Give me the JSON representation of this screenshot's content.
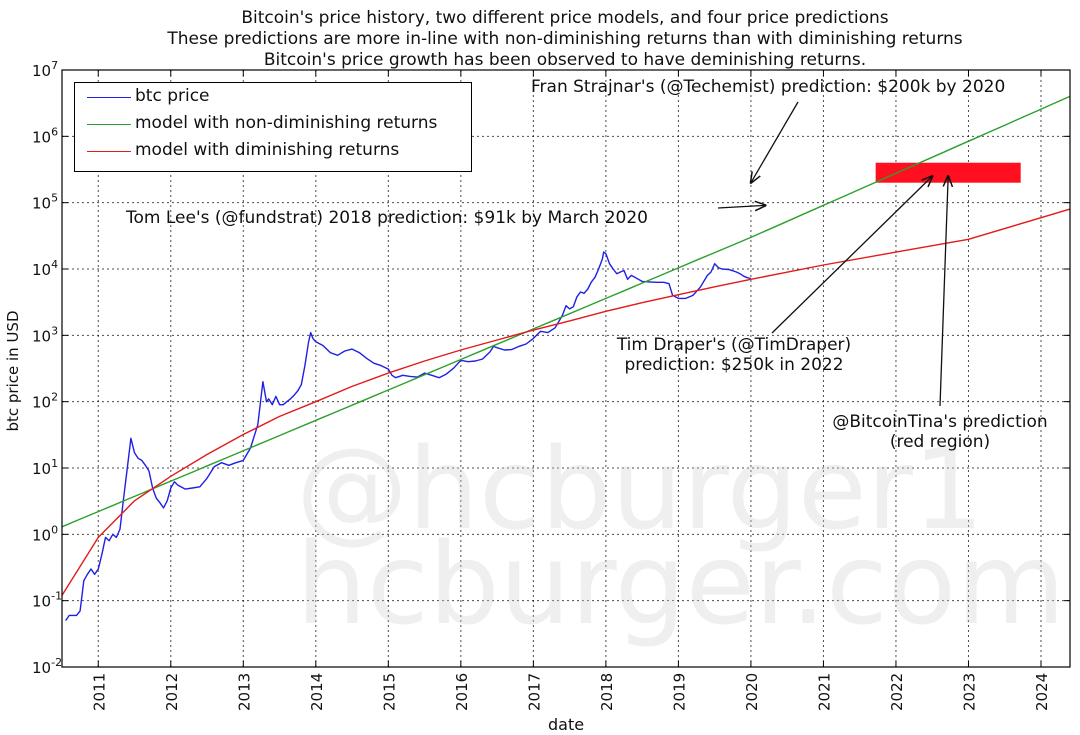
{
  "chart_data": {
    "type": "line",
    "title_lines": [
      "Bitcoin's price history, two different price models, and four price predictions",
      "These predictions are more in-line with non-diminishing returns than with diminishing returns",
      "Bitcoin's price growth has been observed to have deminishing returns."
    ],
    "xlabel": "date",
    "ylabel": "btc price in USD",
    "xlim": [
      2010.5,
      2024.4
    ],
    "ylim_log10": [
      -2,
      7
    ],
    "yscale": "log",
    "grid": true,
    "x_ticks": [
      "2011",
      "2012",
      "2013",
      "2014",
      "2015",
      "2016",
      "2017",
      "2018",
      "2019",
      "2020",
      "2021",
      "2022",
      "2023",
      "2024"
    ],
    "y_ticks": [
      {
        "base": "10",
        "exp": "-2"
      },
      {
        "base": "10",
        "exp": "-1"
      },
      {
        "base": "10",
        "exp": "0"
      },
      {
        "base": "10",
        "exp": "1"
      },
      {
        "base": "10",
        "exp": "2"
      },
      {
        "base": "10",
        "exp": "3"
      },
      {
        "base": "10",
        "exp": "4"
      },
      {
        "base": "10",
        "exp": "5"
      },
      {
        "base": "10",
        "exp": "6"
      },
      {
        "base": "10",
        "exp": "7"
      }
    ],
    "legend": {
      "placement": "top-left",
      "entries": [
        {
          "label": "btc price",
          "color": "#1f1fe6"
        },
        {
          "label": "model with non-diminishing returns",
          "color": "#2ca02c"
        },
        {
          "label": "model with diminishing returns",
          "color": "#e31a1c"
        }
      ]
    },
    "series": [
      {
        "name": "btc price",
        "color": "#1f1fe6",
        "x": [
          2010.55,
          2010.6,
          2010.65,
          2010.7,
          2010.75,
          2010.8,
          2010.85,
          2010.9,
          2010.95,
          2011.0,
          2011.05,
          2011.1,
          2011.15,
          2011.2,
          2011.25,
          2011.3,
          2011.35,
          2011.4,
          2011.45,
          2011.5,
          2011.55,
          2011.6,
          2011.65,
          2011.7,
          2011.75,
          2011.8,
          2011.85,
          2011.9,
          2011.95,
          2012.0,
          2012.05,
          2012.1,
          2012.2,
          2012.3,
          2012.4,
          2012.5,
          2012.6,
          2012.7,
          2012.8,
          2012.9,
          2013.0,
          2013.1,
          2013.2,
          2013.27,
          2013.32,
          2013.35,
          2013.4,
          2013.45,
          2013.5,
          2013.55,
          2013.6,
          2013.65,
          2013.7,
          2013.75,
          2013.8,
          2013.85,
          2013.9,
          2013.93,
          2013.96,
          2014.0,
          2014.1,
          2014.2,
          2014.3,
          2014.4,
          2014.5,
          2014.6,
          2014.7,
          2014.8,
          2014.9,
          2015.0,
          2015.05,
          2015.1,
          2015.2,
          2015.3,
          2015.4,
          2015.5,
          2015.6,
          2015.7,
          2015.8,
          2015.9,
          2016.0,
          2016.1,
          2016.2,
          2016.3,
          2016.4,
          2016.45,
          2016.5,
          2016.6,
          2016.7,
          2016.8,
          2016.9,
          2017.0,
          2017.1,
          2017.2,
          2017.3,
          2017.4,
          2017.45,
          2017.5,
          2017.55,
          2017.6,
          2017.65,
          2017.7,
          2017.75,
          2017.8,
          2017.85,
          2017.9,
          2017.95,
          2017.97,
          2018.0,
          2018.05,
          2018.1,
          2018.15,
          2018.2,
          2018.25,
          2018.3,
          2018.35,
          2018.4,
          2018.5,
          2018.6,
          2018.7,
          2018.8,
          2018.87,
          2018.92,
          2019.0,
          2019.1,
          2019.2,
          2019.3,
          2019.4,
          2019.45,
          2019.5,
          2019.55,
          2019.6,
          2019.7,
          2019.8,
          2019.85,
          2019.9,
          2019.95,
          2020.0
        ],
        "y": [
          0.05,
          0.06,
          0.06,
          0.06,
          0.07,
          0.2,
          0.25,
          0.3,
          0.25,
          0.3,
          0.5,
          0.9,
          0.8,
          1.0,
          0.9,
          1.2,
          3.5,
          10,
          28,
          17,
          14,
          13,
          11,
          9,
          5,
          3.5,
          3.0,
          2.5,
          3.2,
          5,
          6.2,
          5.5,
          4.8,
          5,
          5.2,
          7,
          10.5,
          12,
          11,
          12,
          13,
          20,
          45,
          200,
          100,
          110,
          90,
          120,
          90,
          90,
          100,
          110,
          125,
          145,
          180,
          350,
          800,
          1100,
          900,
          800,
          700,
          550,
          500,
          580,
          620,
          550,
          450,
          380,
          350,
          310,
          250,
          230,
          250,
          240,
          235,
          270,
          250,
          230,
          260,
          320,
          420,
          400,
          410,
          440,
          560,
          680,
          650,
          600,
          610,
          680,
          740,
          900,
          1150,
          1100,
          1300,
          2000,
          2800,
          2500,
          2700,
          3800,
          4500,
          4300,
          5000,
          6400,
          7500,
          10000,
          14000,
          18000,
          17000,
          12000,
          10000,
          8500,
          9000,
          9500,
          7000,
          8000,
          7500,
          6500,
          6400,
          6300,
          6300,
          6000,
          4000,
          3600,
          3600,
          4000,
          5300,
          8000,
          9000,
          12000,
          10500,
          10000,
          9800,
          9000,
          8500,
          7800,
          7400,
          7200
        ]
      },
      {
        "name": "model with non-diminishing returns",
        "color": "#2ca02c",
        "type": "power-law",
        "x": [
          2010.5,
          2015.0,
          2020.0,
          2024.4
        ],
        "y": [
          1.3,
          150,
          30000,
          4000000
        ]
      },
      {
        "name": "model with diminishing returns",
        "color": "#e31a1c",
        "type": "concave",
        "x": [
          2010.5,
          2011.0,
          2011.5,
          2012.0,
          2012.5,
          2013.0,
          2013.5,
          2014.0,
          2014.5,
          2015.0,
          2015.5,
          2016.0,
          2016.5,
          2017.0,
          2017.5,
          2018.0,
          2018.5,
          2019.0,
          2019.5,
          2020.0,
          2021.0,
          2022.0,
          2023.0,
          2024.4
        ],
        "y": [
          0.12,
          0.9,
          3.2,
          7.5,
          16,
          32,
          60,
          100,
          170,
          270,
          410,
          600,
          850,
          1200,
          1650,
          2300,
          3100,
          4100,
          5400,
          7000,
          11500,
          18000,
          28000,
          80000
        ]
      }
    ],
    "highlight_region": {
      "x": [
        2021.72,
        2023.72
      ],
      "y": [
        200000,
        400000
      ],
      "color": "#ff0f1f"
    },
    "annotations": [
      {
        "text": "Fran Strajnar's (@Techemist) prediction: $200k by 2020",
        "target": [
          2020.0,
          200000
        ]
      },
      {
        "text": "Tom Lee's (@fundstrat) 2018 prediction: $91k by March 2020",
        "target": [
          2020.2,
          91000
        ]
      },
      {
        "line1": "Tim Draper's (@TimDraper)",
        "line2": "prediction: $250k in 2022",
        "target": [
          2022.5,
          250000
        ]
      },
      {
        "line1": "@BitcoinTina's prediction",
        "line2": "(red region)",
        "target": [
          2022.72,
          250000
        ]
      }
    ],
    "watermark": [
      "@hcburger1",
      "hcburger.com"
    ]
  }
}
